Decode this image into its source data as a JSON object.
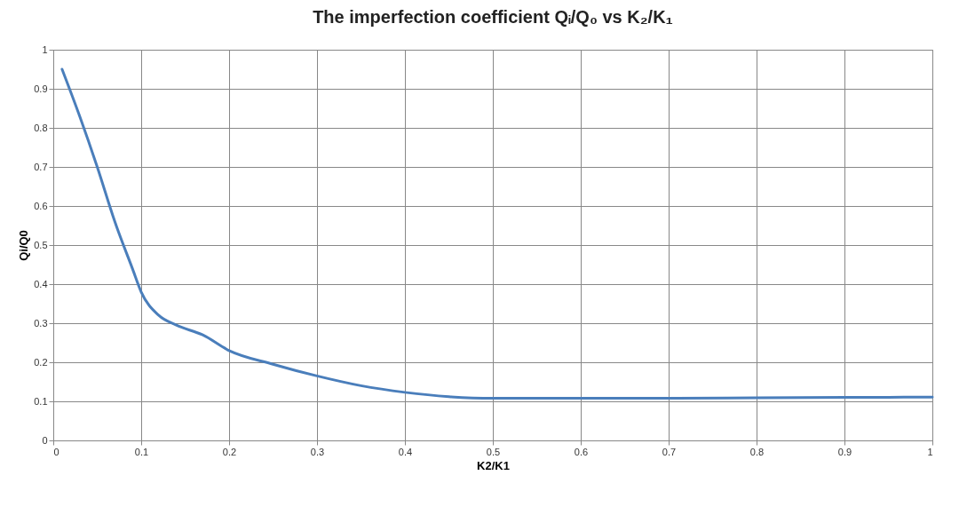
{
  "chart_data": {
    "type": "line",
    "title": "The imperfection coefficient Qᵢ/Q₀ vs K₂/K₁",
    "xlabel": "K2/K1",
    "ylabel": "Qi/Q0",
    "series": [
      {
        "color": "#4a7ebb",
        "x": [
          0.01,
          0.03,
          0.05,
          0.07,
          0.09,
          0.1,
          0.12,
          0.14,
          0.17,
          0.2,
          0.25,
          0.3,
          0.35,
          0.4,
          0.45,
          0.5,
          0.6,
          0.7,
          0.8,
          0.9,
          1.0
        ],
        "values": [
          0.95,
          0.83,
          0.7,
          0.56,
          0.44,
          0.38,
          0.32,
          0.295,
          0.27,
          0.23,
          0.195,
          0.165,
          0.14,
          0.123,
          0.112,
          0.108,
          0.108,
          0.108,
          0.109,
          0.11,
          0.111
        ]
      }
    ],
    "xlim": [
      0,
      1
    ],
    "xticks": [
      0,
      0.1,
      0.2,
      0.3,
      0.4,
      0.5,
      0.6,
      0.7,
      0.8,
      0.9,
      1
    ],
    "ylim": [
      0,
      1
    ],
    "yticks": [
      0,
      0.1,
      0.2,
      0.3,
      0.4,
      0.5,
      0.6,
      0.7,
      0.8,
      0.9,
      1
    ],
    "grid": true,
    "marker": "none",
    "line_style": "solid"
  }
}
